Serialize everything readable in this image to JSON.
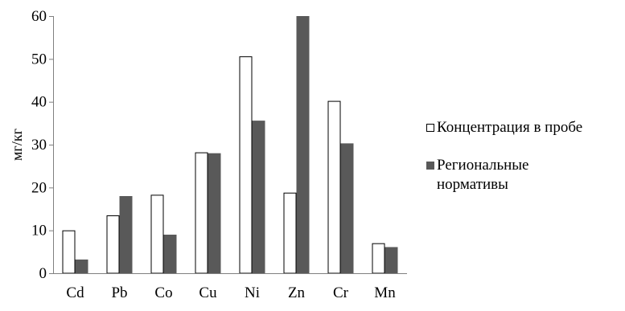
{
  "chart_data": {
    "type": "bar",
    "categories": [
      "Cd",
      "Pb",
      "Co",
      "Cu",
      "Ni",
      "Zn",
      "Cr",
      "Mn"
    ],
    "series": [
      {
        "name": "Концентрация в пробе",
        "values": [
          10,
          13.5,
          18.3,
          28.2,
          50.6,
          18.8,
          40.2,
          7
        ],
        "fill": "#ffffff"
      },
      {
        "name": "Региональные нормативы",
        "values": [
          3.2,
          18,
          9,
          28,
          35.6,
          60,
          30.3,
          6.1
        ],
        "fill": "#595959"
      }
    ],
    "ylabel": "мг/кг",
    "xlabel": "",
    "ylim": [
      0,
      60
    ],
    "yticks": [
      0,
      10,
      20,
      30,
      40,
      50,
      60
    ],
    "grid": false,
    "legend_position": "right"
  }
}
